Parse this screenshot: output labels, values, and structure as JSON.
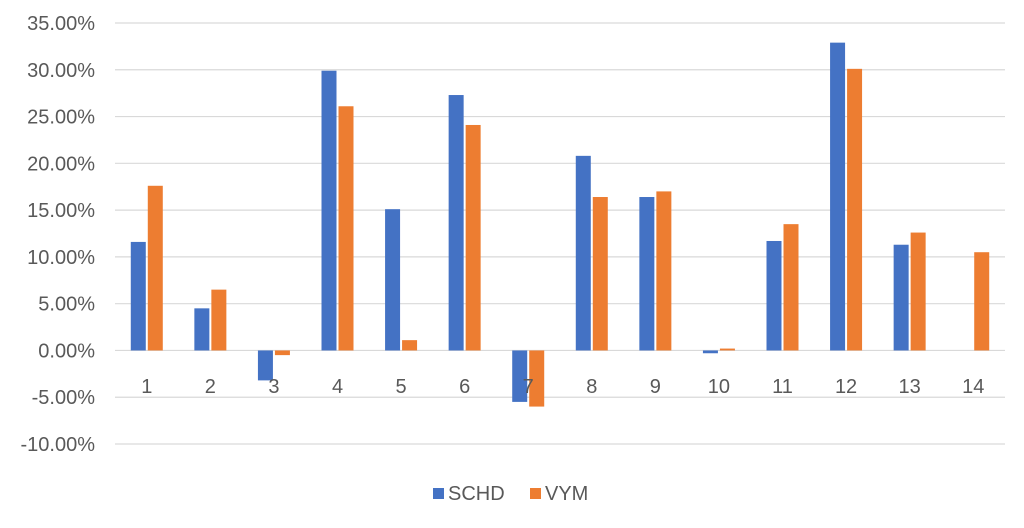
{
  "chart_data": {
    "type": "bar",
    "categories": [
      "1",
      "2",
      "3",
      "4",
      "5",
      "6",
      "7",
      "8",
      "9",
      "10",
      "11",
      "12",
      "13",
      "14"
    ],
    "series": [
      {
        "name": "SCHD",
        "color": "#4472C4",
        "values": [
          11.6,
          4.5,
          -3.2,
          29.9,
          15.1,
          27.3,
          -5.5,
          20.8,
          16.4,
          -0.3,
          11.7,
          32.9,
          11.3,
          null
        ]
      },
      {
        "name": "VYM",
        "color": "#ED7D31",
        "values": [
          17.6,
          6.5,
          -0.5,
          26.1,
          1.1,
          24.1,
          -6.0,
          16.4,
          17.0,
          0.2,
          13.5,
          30.1,
          12.6,
          10.5
        ]
      }
    ],
    "y_ticks": [
      "35.00%",
      "30.00%",
      "25.00%",
      "20.00%",
      "15.00%",
      "10.00%",
      "5.00%",
      "0.00%",
      "-5.00%",
      "-10.00%"
    ],
    "ylim": [
      -10,
      35
    ],
    "grid": true,
    "legend_position": "bottom",
    "gridline_color": "#d9d9d9",
    "axis_label_color": "#595959"
  }
}
